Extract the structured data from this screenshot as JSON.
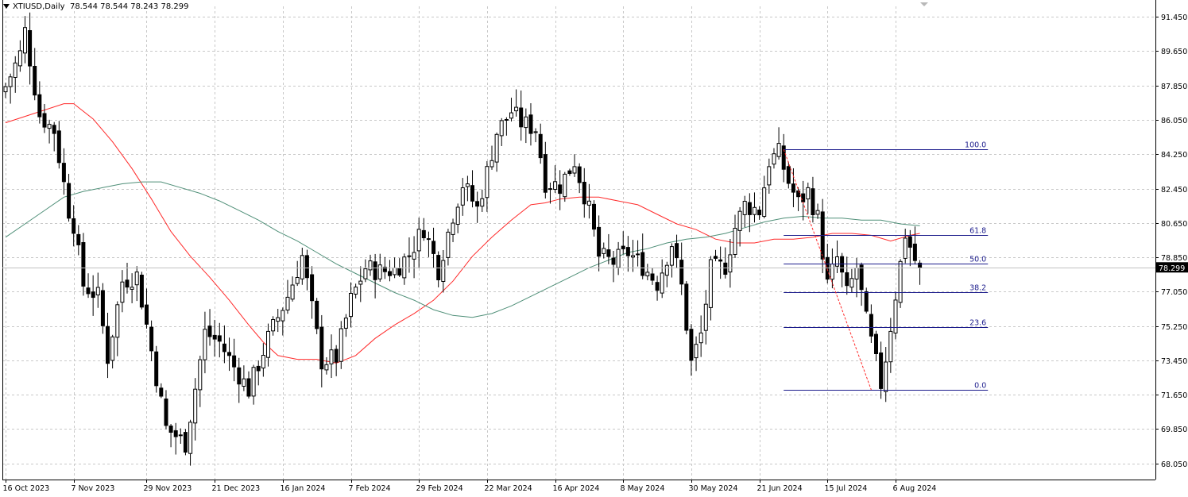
{
  "header": {
    "symbol": "XTIUSD,Daily",
    "ohlc": "78.544 78.544 78.243 78.299"
  },
  "chart_data": {
    "type": "candlestick",
    "title": "XTIUSD,Daily",
    "ylim": [
      67.2,
      92.0
    ],
    "y_ticks": [
      "91.450",
      "89.650",
      "87.850",
      "86.050",
      "84.250",
      "82.450",
      "80.650",
      "78.850",
      "77.050",
      "75.250",
      "73.450",
      "71.650",
      "69.850",
      "68.050"
    ],
    "x_ticks": [
      {
        "label": "16 Oct 2023",
        "index": 0
      },
      {
        "label": "7 Nov 2023",
        "index": 14
      },
      {
        "label": "29 Nov 2023",
        "index": 29
      },
      {
        "label": "21 Dec 2023",
        "index": 43
      },
      {
        "label": "16 Jan 2024",
        "index": 57
      },
      {
        "label": "7 Feb 2024",
        "index": 71
      },
      {
        "label": "29 Feb 2024",
        "index": 85
      },
      {
        "label": "22 Mar 2024",
        "index": 99
      },
      {
        "label": "16 Apr 2024",
        "index": 113
      },
      {
        "label": "8 May 2024",
        "index": 127
      },
      {
        "label": "30 May 2024",
        "index": 141
      },
      {
        "label": "21 Jun 2024",
        "index": 155
      },
      {
        "label": "15 Jul 2024",
        "index": 169
      },
      {
        "label": "6 Aug 2024",
        "index": 183
      }
    ],
    "last_price": "78.299",
    "last_price_value": 78.299,
    "grid": true,
    "close_anchors": [
      [
        0,
        87.8
      ],
      [
        3,
        89.5
      ],
      [
        4,
        90.7
      ],
      [
        7,
        86.3
      ],
      [
        10,
        85.5
      ],
      [
        13,
        81.3
      ],
      [
        14,
        80.6
      ],
      [
        16,
        77.4
      ],
      [
        19,
        76.8
      ],
      [
        21,
        73.6
      ],
      [
        24,
        77.6
      ],
      [
        27,
        77.9
      ],
      [
        29,
        75.3
      ],
      [
        33,
        69.9
      ],
      [
        37,
        69.1
      ],
      [
        41,
        74.9
      ],
      [
        44,
        74.4
      ],
      [
        47,
        73.1
      ],
      [
        50,
        71.9
      ],
      [
        54,
        74.6
      ],
      [
        58,
        76.8
      ],
      [
        61,
        78.9
      ],
      [
        65,
        73.4
      ],
      [
        68,
        73.6
      ],
      [
        71,
        76.6
      ],
      [
        74,
        78.3
      ],
      [
        77,
        78.1
      ],
      [
        80,
        78.2
      ],
      [
        83,
        79.0
      ],
      [
        86,
        80.4
      ],
      [
        89,
        78.2
      ],
      [
        92,
        81.1
      ],
      [
        94,
        82.7
      ],
      [
        97,
        81.4
      ],
      [
        99,
        83.3
      ],
      [
        101,
        85.4
      ],
      [
        104,
        86.5
      ],
      [
        106,
        85.9
      ],
      [
        109,
        85.6
      ],
      [
        111,
        82.8
      ],
      [
        114,
        82.6
      ],
      [
        117,
        83.9
      ],
      [
        120,
        81.3
      ],
      [
        122,
        78.9
      ],
      [
        125,
        78.6
      ],
      [
        128,
        79.1
      ],
      [
        131,
        78.4
      ],
      [
        134,
        77.5
      ],
      [
        137,
        79.6
      ],
      [
        139,
        77.3
      ],
      [
        141,
        73.3
      ],
      [
        143,
        74.8
      ],
      [
        145,
        78.2
      ],
      [
        148,
        78.4
      ],
      [
        150,
        80.4
      ],
      [
        152,
        81.6
      ],
      [
        155,
        81.3
      ],
      [
        157,
        83.9
      ],
      [
        159,
        84.3
      ],
      [
        161,
        82.8
      ],
      [
        163,
        81.7
      ],
      [
        165,
        82.3
      ],
      [
        167,
        80.9
      ],
      [
        169,
        77.4
      ],
      [
        171,
        78.8
      ],
      [
        173,
        76.9
      ],
      [
        175,
        78.3
      ],
      [
        177,
        75.5
      ],
      [
        179,
        73.3
      ],
      [
        180,
        72.2
      ],
      [
        181,
        73.6
      ],
      [
        183,
        76.9
      ],
      [
        185,
        80.1
      ],
      [
        186,
        79.4
      ],
      [
        187,
        78.7
      ],
      [
        188,
        78.3
      ]
    ],
    "series": [
      {
        "name": "OHLC",
        "color": "#000000"
      },
      {
        "name": "MA-fast",
        "color": "#ff2a2a",
        "points": [
          [
            0,
            85.9
          ],
          [
            6,
            86.4
          ],
          [
            12,
            86.9
          ],
          [
            14,
            86.9
          ],
          [
            18,
            86.1
          ],
          [
            22,
            84.9
          ],
          [
            26,
            83.5
          ],
          [
            30,
            81.9
          ],
          [
            34,
            80.2
          ],
          [
            38,
            78.9
          ],
          [
            42,
            77.8
          ],
          [
            46,
            76.6
          ],
          [
            50,
            75.3
          ],
          [
            53,
            74.4
          ],
          [
            56,
            73.7
          ],
          [
            60,
            73.5
          ],
          [
            64,
            73.5
          ],
          [
            68,
            73.3
          ],
          [
            72,
            73.7
          ],
          [
            76,
            74.6
          ],
          [
            80,
            75.3
          ],
          [
            84,
            75.9
          ],
          [
            88,
            76.6
          ],
          [
            92,
            77.6
          ],
          [
            96,
            78.9
          ],
          [
            100,
            79.9
          ],
          [
            104,
            80.8
          ],
          [
            108,
            81.6
          ],
          [
            111,
            81.7
          ],
          [
            114,
            81.9
          ],
          [
            118,
            82.0
          ],
          [
            122,
            82.0
          ],
          [
            126,
            81.8
          ],
          [
            130,
            81.6
          ],
          [
            134,
            81.1
          ],
          [
            138,
            80.6
          ],
          [
            142,
            80.3
          ],
          [
            146,
            79.8
          ],
          [
            150,
            79.6
          ],
          [
            154,
            79.6
          ],
          [
            158,
            79.8
          ],
          [
            162,
            79.8
          ],
          [
            166,
            79.9
          ],
          [
            170,
            80.1
          ],
          [
            174,
            80.1
          ],
          [
            178,
            80.0
          ],
          [
            182,
            79.7
          ],
          [
            186,
            80.0
          ],
          [
            188,
            80.1
          ]
        ]
      },
      {
        "name": "MA-slow",
        "color": "#4f8f78",
        "points": [
          [
            0,
            79.9
          ],
          [
            4,
            80.6
          ],
          [
            8,
            81.3
          ],
          [
            12,
            82.0
          ],
          [
            16,
            82.3
          ],
          [
            20,
            82.5
          ],
          [
            24,
            82.7
          ],
          [
            28,
            82.8
          ],
          [
            32,
            82.8
          ],
          [
            36,
            82.5
          ],
          [
            40,
            82.2
          ],
          [
            44,
            81.8
          ],
          [
            48,
            81.3
          ],
          [
            52,
            80.8
          ],
          [
            56,
            80.2
          ],
          [
            60,
            79.7
          ],
          [
            64,
            79.1
          ],
          [
            68,
            78.5
          ],
          [
            72,
            78.0
          ],
          [
            76,
            77.5
          ],
          [
            80,
            77.0
          ],
          [
            84,
            76.6
          ],
          [
            88,
            76.1
          ],
          [
            92,
            75.8
          ],
          [
            96,
            75.7
          ],
          [
            100,
            75.9
          ],
          [
            104,
            76.3
          ],
          [
            108,
            76.8
          ],
          [
            112,
            77.3
          ],
          [
            116,
            77.8
          ],
          [
            120,
            78.3
          ],
          [
            124,
            78.7
          ],
          [
            128,
            79.1
          ],
          [
            132,
            79.3
          ],
          [
            136,
            79.6
          ],
          [
            140,
            79.8
          ],
          [
            144,
            79.9
          ],
          [
            148,
            80.1
          ],
          [
            152,
            80.4
          ],
          [
            156,
            80.7
          ],
          [
            160,
            80.9
          ],
          [
            164,
            81.0
          ],
          [
            168,
            80.9
          ],
          [
            172,
            80.9
          ],
          [
            176,
            80.8
          ],
          [
            180,
            80.8
          ],
          [
            184,
            80.6
          ],
          [
            188,
            80.5
          ]
        ]
      }
    ],
    "fibonacci": {
      "start_index": 160,
      "end_index": 202,
      "high": 84.5,
      "low": 71.9,
      "trend_from_index": 160,
      "trend_to_index": 178,
      "color": "#1c1c8c",
      "trend_color": "#ff2a2a",
      "levels": [
        {
          "label": "100.0",
          "value": 84.5
        },
        {
          "label": "61.8",
          "value": 80.0
        },
        {
          "label": "50.0",
          "value": 78.5
        },
        {
          "label": "38.2",
          "value": 77.0
        },
        {
          "label": "23.6",
          "value": 75.2
        },
        {
          "label": "0.0",
          "value": 71.9
        }
      ]
    }
  }
}
